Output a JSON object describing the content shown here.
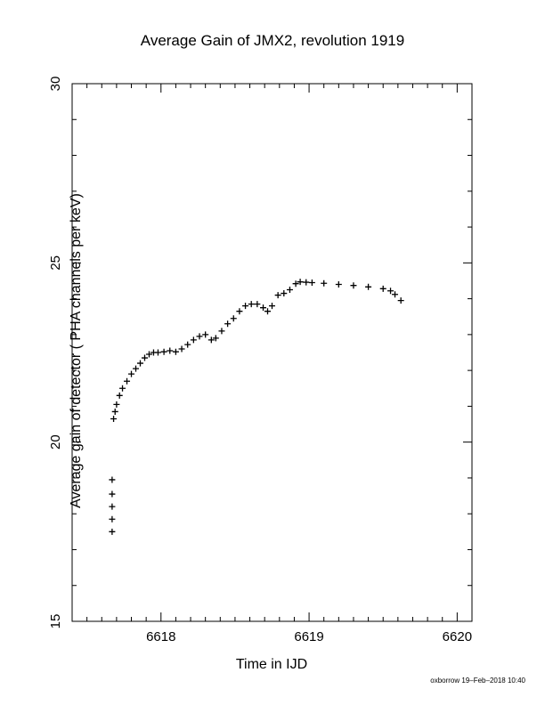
{
  "chart_data": {
    "type": "scatter",
    "title": "Average Gain of JMX2, revolution 1919",
    "xlabel": "Time in IJD",
    "ylabel": "Average gain of detector ( PHA channels per keV)",
    "xlim": [
      6617.4,
      6620.1
    ],
    "ylim": [
      15,
      30
    ],
    "xticks": [
      6618,
      6619,
      6620
    ],
    "yticks": [
      15,
      20,
      25,
      30
    ],
    "marker": "plus",
    "color": "#000000",
    "series": [
      {
        "x": [
          6617.67,
          6617.67,
          6617.67,
          6617.67,
          6617.67,
          6617.68,
          6617.69,
          6617.7,
          6617.72,
          6617.74,
          6617.77,
          6617.8,
          6617.83,
          6617.86,
          6617.89,
          6617.92,
          6617.95,
          6617.98,
          6618.02,
          6618.06,
          6618.1,
          6618.14,
          6618.18,
          6618.22,
          6618.26,
          6618.3,
          6618.34,
          6618.37,
          6618.41,
          6618.45,
          6618.49,
          6618.53,
          6618.57,
          6618.61,
          6618.65,
          6618.69,
          6618.72,
          6618.75,
          6618.79,
          6618.83,
          6618.87,
          6618.91,
          6618.94,
          6618.98,
          6619.02,
          6619.1,
          6619.2,
          6619.3,
          6619.4,
          6619.5,
          6619.55,
          6619.58,
          6619.62
        ],
        "y": [
          17.5,
          17.85,
          18.2,
          18.55,
          18.95,
          20.65,
          20.85,
          21.05,
          21.3,
          21.5,
          21.7,
          21.9,
          22.05,
          22.2,
          22.35,
          22.45,
          22.5,
          22.5,
          22.52,
          22.55,
          22.52,
          22.6,
          22.72,
          22.85,
          22.95,
          23.0,
          22.85,
          22.9,
          23.1,
          23.3,
          23.45,
          23.65,
          23.8,
          23.85,
          23.85,
          23.75,
          23.65,
          23.8,
          24.1,
          24.15,
          24.25,
          24.42,
          24.47,
          24.46,
          24.45,
          24.43,
          24.4,
          24.37,
          24.33,
          24.28,
          24.22,
          24.12,
          23.95
        ]
      }
    ]
  },
  "footer": {
    "stamp": "oxborrow 19–Feb–2018 10:40"
  }
}
